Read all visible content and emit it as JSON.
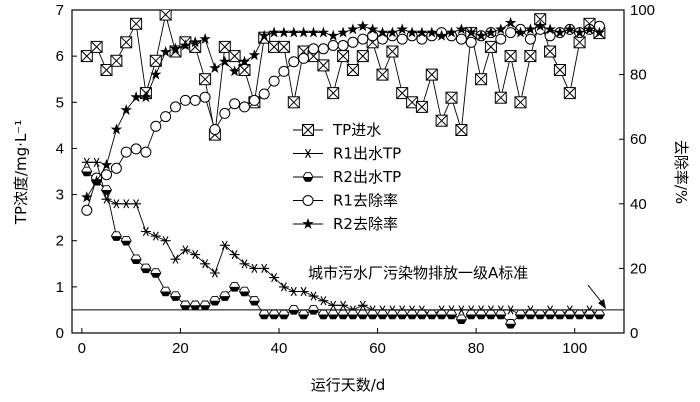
{
  "chart_data": {
    "type": "line",
    "title": "",
    "xlabel": "运行天数/d",
    "ylabel": "TP浓度/mg·L⁻¹",
    "y2label": "去除率/%",
    "xlim": [
      -2,
      110
    ],
    "ylim": [
      0,
      7
    ],
    "y2lim": [
      0,
      100
    ],
    "xticks": [
      "0",
      "20",
      "40",
      "60",
      "80",
      "100"
    ],
    "yticks": [
      "0",
      "1",
      "2",
      "3",
      "4",
      "5",
      "6",
      "7"
    ],
    "y2ticks": [
      "0",
      "20",
      "40",
      "60",
      "80",
      "100"
    ],
    "grid": false,
    "legend_position": "center",
    "reference_line": {
      "y": 0.5,
      "label": "城市污水厂污染物排放一级A标准"
    },
    "series": [
      {
        "name": "TP进水",
        "axis": "left",
        "marker": "boxx",
        "x": [
          1,
          3,
          5,
          7,
          9,
          11,
          13,
          15,
          17,
          19,
          21,
          23,
          25,
          27,
          29,
          31,
          33,
          35,
          37,
          39,
          41,
          43,
          45,
          47,
          49,
          51,
          53,
          55,
          57,
          59,
          61,
          63,
          65,
          67,
          69,
          71,
          73,
          75,
          77,
          79,
          81,
          83,
          85,
          87,
          89,
          91,
          93,
          95,
          97,
          99,
          101,
          103,
          105
        ],
        "y": [
          6.0,
          6.2,
          5.7,
          5.9,
          6.3,
          6.7,
          5.2,
          5.9,
          6.9,
          6.1,
          6.3,
          6.2,
          5.5,
          4.3,
          6.2,
          6.0,
          5.7,
          5.0,
          6.4,
          6.2,
          6.2,
          5.0,
          6.1,
          6.0,
          5.8,
          5.2,
          6.0,
          5.7,
          6.0,
          6.3,
          5.6,
          6.1,
          5.2,
          5.0,
          4.9,
          5.6,
          4.6,
          5.1,
          4.4,
          6.5,
          5.5,
          6.2,
          5.1,
          6.0,
          5.0,
          6.0,
          6.8,
          6.1,
          5.7,
          5.2,
          6.3,
          6.7,
          6.5
        ]
      },
      {
        "name": "R1出水TP",
        "axis": "left",
        "marker": "asterisk",
        "x": [
          1,
          3,
          5,
          7,
          9,
          11,
          13,
          15,
          17,
          19,
          21,
          23,
          25,
          27,
          29,
          31,
          33,
          35,
          37,
          39,
          41,
          43,
          45,
          47,
          49,
          51,
          53,
          55,
          57,
          59,
          61,
          63,
          65,
          67,
          69,
          71,
          73,
          75,
          77,
          79,
          81,
          83,
          85,
          87,
          89,
          91,
          93,
          95,
          97,
          99,
          101,
          103,
          105
        ],
        "y": [
          3.7,
          3.7,
          2.9,
          2.8,
          2.8,
          2.8,
          2.2,
          2.1,
          2.0,
          1.6,
          1.8,
          1.7,
          1.5,
          1.3,
          1.9,
          1.7,
          1.5,
          1.4,
          1.4,
          1.2,
          1.0,
          0.9,
          0.9,
          0.8,
          0.7,
          0.6,
          0.6,
          0.5,
          0.6,
          0.5,
          0.5,
          0.5,
          0.5,
          0.5,
          0.5,
          0.4,
          0.5,
          0.5,
          0.5,
          0.5,
          0.5,
          0.5,
          0.5,
          0.5,
          0.4,
          0.5,
          0.4,
          0.5,
          0.4,
          0.5,
          0.4,
          0.5,
          0.4
        ]
      },
      {
        "name": "R2出水TP",
        "axis": "left",
        "marker": "halfhex",
        "x": [
          1,
          3,
          5,
          7,
          9,
          11,
          13,
          15,
          17,
          19,
          21,
          23,
          25,
          27,
          29,
          31,
          33,
          35,
          37,
          39,
          41,
          43,
          45,
          47,
          49,
          51,
          53,
          55,
          57,
          59,
          61,
          63,
          65,
          67,
          69,
          71,
          73,
          75,
          77,
          79,
          81,
          83,
          85,
          87,
          89,
          91,
          93,
          95,
          97,
          99,
          101,
          103,
          105
        ],
        "y": [
          3.5,
          3.3,
          3.1,
          2.1,
          2.0,
          1.6,
          1.4,
          1.3,
          0.9,
          0.8,
          0.6,
          0.6,
          0.6,
          0.7,
          0.8,
          1.0,
          0.9,
          0.7,
          0.4,
          0.4,
          0.4,
          0.5,
          0.4,
          0.5,
          0.4,
          0.4,
          0.4,
          0.4,
          0.4,
          0.4,
          0.4,
          0.4,
          0.4,
          0.4,
          0.4,
          0.4,
          0.4,
          0.4,
          0.3,
          0.4,
          0.4,
          0.4,
          0.4,
          0.2,
          0.4,
          0.4,
          0.4,
          0.4,
          0.4,
          0.4,
          0.4,
          0.4,
          0.4
        ]
      },
      {
        "name": "R1去除率",
        "axis": "right",
        "marker": "circle",
        "x": [
          1,
          3,
          5,
          7,
          9,
          11,
          13,
          15,
          17,
          19,
          21,
          23,
          25,
          27,
          29,
          31,
          33,
          35,
          37,
          39,
          41,
          43,
          45,
          47,
          49,
          51,
          53,
          55,
          57,
          59,
          61,
          63,
          65,
          67,
          69,
          71,
          73,
          75,
          77,
          79,
          81,
          83,
          85,
          87,
          89,
          91,
          93,
          95,
          97,
          99,
          101,
          103,
          105
        ],
        "y": [
          38,
          48,
          49,
          51,
          56,
          57,
          56,
          64,
          67,
          70,
          72,
          72,
          73,
          63,
          68,
          71,
          70,
          72,
          74,
          78,
          81,
          84,
          85,
          88,
          88,
          89,
          89,
          90,
          91,
          92,
          91,
          92,
          91,
          92,
          91,
          92,
          93,
          92,
          91,
          90,
          92,
          93,
          91,
          93,
          94,
          91,
          94,
          92,
          93,
          94,
          93,
          94,
          95
        ]
      },
      {
        "name": "R2去除率",
        "axis": "right",
        "marker": "star",
        "x": [
          1,
          3,
          5,
          7,
          9,
          11,
          13,
          15,
          17,
          19,
          21,
          23,
          25,
          27,
          29,
          31,
          33,
          35,
          37,
          39,
          41,
          43,
          45,
          47,
          49,
          51,
          53,
          55,
          57,
          59,
          61,
          63,
          65,
          67,
          69,
          71,
          73,
          75,
          77,
          79,
          81,
          83,
          85,
          87,
          89,
          91,
          93,
          95,
          97,
          99,
          101,
          103,
          105
        ],
        "y": [
          42,
          47,
          52,
          63,
          69,
          73,
          73,
          80,
          87,
          88,
          89,
          90,
          91,
          82,
          84,
          81,
          84,
          86,
          92,
          93,
          93,
          93,
          93,
          93,
          93,
          92,
          93,
          94,
          95,
          94,
          93,
          93,
          94,
          93,
          93,
          93,
          92,
          93,
          94,
          93,
          92,
          93,
          94,
          96,
          93,
          94,
          95,
          94,
          93,
          94,
          93,
          94,
          93
        ]
      }
    ]
  }
}
